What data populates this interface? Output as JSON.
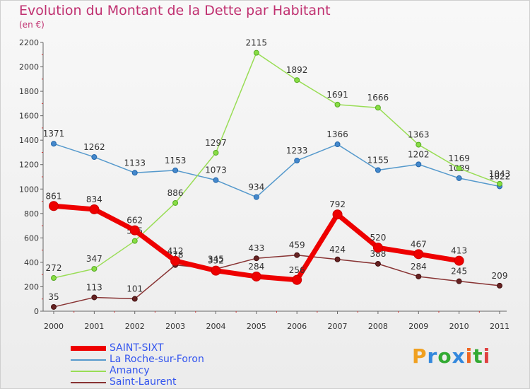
{
  "title": "Evolution du Montant de la Dette par Habitant",
  "subtitle": "(en €)",
  "logo_text": "Proxiti",
  "logo_colors": [
    "#f0a020",
    "#3388dd",
    "#33aa33",
    "#3388dd",
    "#ee6622",
    "#33aa33",
    "#e04040"
  ],
  "chart_data": {
    "type": "line",
    "title": "Evolution du Montant de la Dette par Habitant",
    "subtitle": "(en €)",
    "x": [
      2000,
      2001,
      2002,
      2003,
      2004,
      2005,
      2006,
      2007,
      2008,
      2009,
      2010,
      2011
    ],
    "ylim": [
      0,
      2200
    ],
    "yticks": [
      0,
      200,
      400,
      600,
      800,
      1000,
      1200,
      1400,
      1600,
      1800,
      2000,
      2200
    ],
    "grid": false,
    "legend_position": "bottom-left",
    "series": [
      {
        "name": "La Roche-sur-Foron",
        "color": "#5599cc",
        "values": [
          1371,
          1262,
          1133,
          1153,
          1073,
          934,
          1233,
          1366,
          1155,
          1202,
          1089,
          1022
        ]
      },
      {
        "name": "Amancy",
        "color": "#99dd55",
        "values": [
          272,
          347,
          575,
          886,
          1297,
          2115,
          1892,
          1691,
          1666,
          1363,
          1169,
          1043
        ]
      },
      {
        "name": "Saint-Laurent",
        "color": "#883333",
        "values": [
          35,
          113,
          101,
          378,
          345,
          433,
          459,
          424,
          388,
          284,
          245,
          209
        ]
      },
      {
        "name": "SAINT-SIXT",
        "color": "#ee0000",
        "values": [
          861,
          834,
          662,
          412,
          332,
          284,
          256,
          792,
          520,
          467,
          413,
          null
        ]
      }
    ],
    "legend_order": [
      "SAINT-SIXT",
      "La Roche-sur-Foron",
      "Amancy",
      "Saint-Laurent"
    ]
  }
}
